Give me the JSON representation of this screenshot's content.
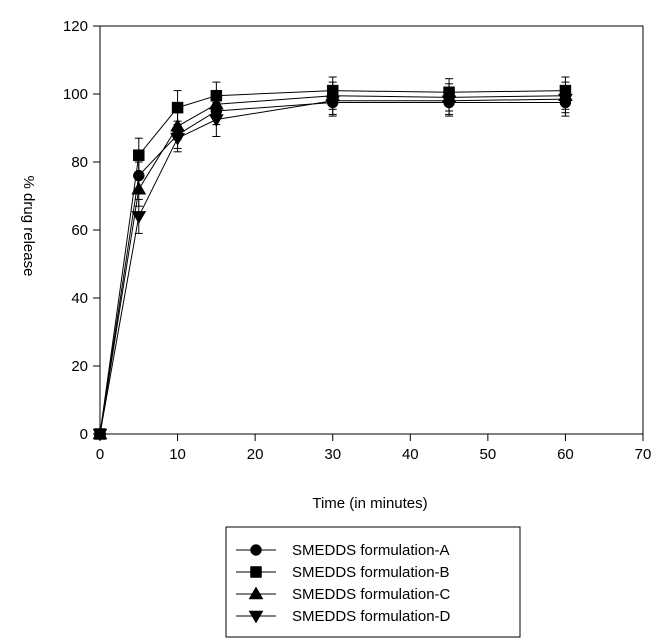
{
  "chart_data": {
    "type": "line",
    "title": "",
    "xlabel": "Time (in minutes)",
    "ylabel": "% drug release",
    "xlim": [
      0,
      70
    ],
    "ylim": [
      0,
      120
    ],
    "xticks": [
      0,
      10,
      20,
      30,
      40,
      50,
      60,
      70
    ],
    "yticks": [
      0,
      20,
      40,
      60,
      80,
      100,
      120
    ],
    "grid": false,
    "legend_position": "bottom",
    "x": [
      0,
      5,
      10,
      15,
      30,
      45,
      60
    ],
    "series": [
      {
        "name": "SMEDDS formulation-A",
        "marker": "circle",
        "values": [
          0,
          76,
          88,
          95,
          97.5,
          97.5,
          97.5
        ],
        "errors": [
          0,
          4,
          4,
          4,
          4,
          4,
          4
        ]
      },
      {
        "name": "SMEDDS formulation-B",
        "marker": "square",
        "values": [
          0,
          82,
          96,
          99.5,
          101,
          100.5,
          101
        ],
        "errors": [
          0,
          5,
          5,
          4,
          4,
          4,
          4
        ]
      },
      {
        "name": "SMEDDS formulation-C",
        "marker": "triangle-up",
        "values": [
          0,
          72,
          90.5,
          97,
          99.5,
          99,
          99.5
        ],
        "errors": [
          0,
          5,
          4,
          4,
          4,
          4,
          4
        ]
      },
      {
        "name": "SMEDDS formulation-D",
        "marker": "triangle-down",
        "values": [
          0,
          64,
          87,
          92.5,
          98,
          98,
          98.5
        ],
        "errors": [
          0,
          5,
          4,
          5,
          4,
          4,
          4
        ]
      }
    ]
  }
}
